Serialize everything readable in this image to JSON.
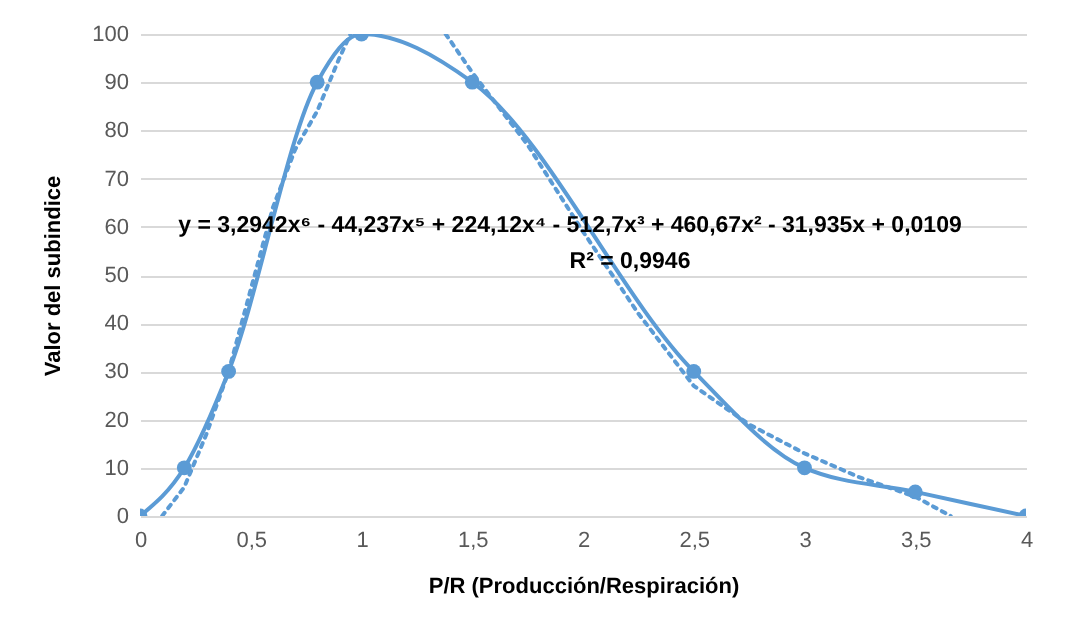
{
  "chart_data": {
    "type": "line",
    "xlabel": "P/R (Producción/Respiración)",
    "ylabel": "Valor del subindice",
    "xlim": [
      0,
      4
    ],
    "ylim": [
      0,
      100
    ],
    "xticks": [
      0,
      {
        "value": 0.5,
        "label": "0,5"
      },
      1,
      {
        "value": 1.5,
        "label": "1,5"
      },
      2,
      {
        "value": 2.5,
        "label": "2,5"
      },
      3,
      {
        "value": 3.5,
        "label": "3,5"
      },
      4
    ],
    "yticks": [
      0,
      10,
      20,
      30,
      40,
      50,
      60,
      70,
      80,
      90,
      100
    ],
    "grid": "y",
    "series": [
      {
        "color": "#5b9bd5",
        "marker": "circle",
        "line_style": "solid",
        "x": [
          0,
          0.2,
          0.4,
          0.8,
          1,
          1.5,
          2.5,
          3,
          3.5,
          4
        ],
        "values": [
          0,
          10,
          30,
          90,
          100,
          90,
          30,
          10,
          5,
          0
        ]
      },
      {
        "type": "line",
        "color": "#5b9bd5",
        "marker": "none",
        "line_style": "dotted",
        "x": [
          0.1,
          0.2,
          0.3,
          0.4,
          0.5,
          0.6,
          0.7,
          0.8,
          0.9,
          0.95,
          1.2,
          1.38,
          1.5,
          1.75,
          2,
          2.25,
          2.5,
          2.75,
          3,
          3.25,
          3.5,
          3.66
        ],
        "values": [
          0,
          6,
          17,
          30,
          47,
          64,
          76,
          84,
          95,
          100,
          null,
          100,
          92,
          77,
          59,
          42,
          27,
          19,
          13,
          8,
          4,
          0
        ]
      }
    ],
    "annotations": [
      "y = 3,2942x⁶ - 44,237x⁵ + 224,12x⁴ - 512,7x³ + 460,67x² - 31,935x + 0,0109",
      "R² = 0,9946"
    ]
  }
}
